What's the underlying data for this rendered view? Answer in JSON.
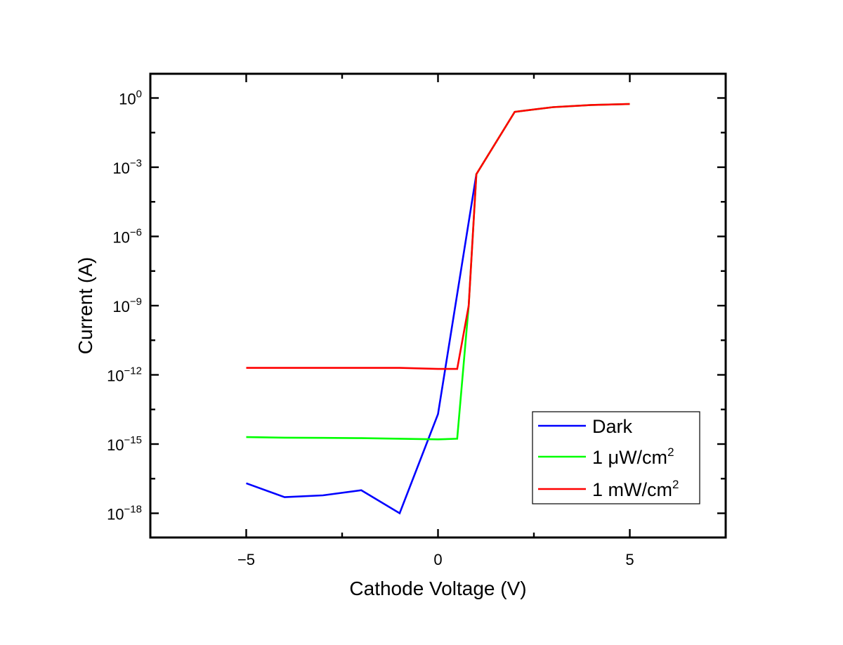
{
  "chart_data": {
    "type": "line",
    "title": "",
    "xlabel": "Cathode Voltage (V)",
    "ylabel": "Current (A)",
    "xlim": [
      -7.5,
      7.5
    ],
    "ylim_log10": [
      -19.05,
      1.05
    ],
    "yscale": "log",
    "x_ticks": [
      -5,
      0,
      5
    ],
    "x_tick_labels": [
      "−5",
      "0",
      "5"
    ],
    "y_ticks_log10": [
      0,
      -3,
      -6,
      -9,
      -12,
      -15,
      -18
    ],
    "y_tick_labels": [
      {
        "base": "10",
        "exp": "0"
      },
      {
        "base": "10",
        "exp": "−3"
      },
      {
        "base": "10",
        "exp": "−6"
      },
      {
        "base": "10",
        "exp": "−9"
      },
      {
        "base": "10",
        "exp": "−12"
      },
      {
        "base": "10",
        "exp": "−15"
      },
      {
        "base": "10",
        "exp": "−18"
      }
    ],
    "grid": false,
    "legend_position": "bottom-right",
    "series": [
      {
        "name": "Dark",
        "color": "#0000ff",
        "x": [
          -5,
          -4,
          -3,
          -2,
          -1,
          0,
          1
        ],
        "y": [
          2e-17,
          5e-18,
          6e-18,
          1e-17,
          1e-18,
          2e-14,
          0.0005
        ]
      },
      {
        "name": "1 μW/cm",
        "name_sup": "2",
        "color": "#00ff00",
        "x": [
          -5,
          -4,
          -3,
          -2,
          -1,
          0,
          0.5,
          0.8,
          1,
          2,
          3,
          4,
          5
        ],
        "y": [
          2e-15,
          1.9e-15,
          1.85e-15,
          1.8e-15,
          1.7e-15,
          1.6e-15,
          1.7e-15,
          1e-09,
          0.0005,
          0.25,
          0.4,
          0.5,
          0.55
        ]
      },
      {
        "name": "1 mW/cm",
        "name_sup": "2",
        "color": "#ff0000",
        "x": [
          -5,
          -4,
          -3,
          -2,
          -1,
          0,
          0.5,
          0.8,
          1,
          2,
          3,
          4,
          5
        ],
        "y": [
          2e-12,
          2e-12,
          2e-12,
          2e-12,
          2e-12,
          1.8e-12,
          1.8e-12,
          1e-09,
          0.0005,
          0.25,
          0.4,
          0.5,
          0.55
        ]
      }
    ]
  }
}
